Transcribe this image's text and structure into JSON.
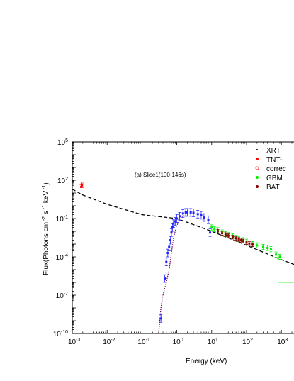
{
  "chart_data": {
    "type": "scatter",
    "annotation": "(a) Slice1(100-146s)",
    "xlabel": "Energy (keV)",
    "ylabel": "Flux(Photons cm^-2 s^-1 keV^-1)",
    "x_scale": "log",
    "y_scale": "log",
    "xlim": [
      0.001,
      3000
    ],
    "ylim": [
      1e-10,
      100000
    ],
    "x_ticks": [
      {
        "value": 0.001,
        "base": "10",
        "exp": "-3"
      },
      {
        "value": 0.01,
        "base": "10",
        "exp": "-2"
      },
      {
        "value": 0.1,
        "base": "10",
        "exp": "-1"
      },
      {
        "value": 1,
        "base": "10",
        "exp": "0"
      },
      {
        "value": 10,
        "base": "10",
        "exp": "1"
      },
      {
        "value": 100,
        "base": "10",
        "exp": "2"
      },
      {
        "value": 1000,
        "base": "10",
        "exp": "3"
      }
    ],
    "y_ticks": [
      {
        "value": 1e-10,
        "base": "10",
        "exp": "-10"
      },
      {
        "value": 1e-07,
        "base": "10",
        "exp": "-7"
      },
      {
        "value": 0.0001,
        "base": "10",
        "exp": "-4"
      },
      {
        "value": 0.1,
        "base": "10",
        "exp": "-1"
      },
      {
        "value": 100,
        "base": "10",
        "exp": "2"
      },
      {
        "value": 100000,
        "base": "10",
        "exp": "5"
      }
    ],
    "grid": false,
    "legend_position": "top-right",
    "legend": [
      {
        "label": "XRT",
        "color": "#000000",
        "marker": "dot"
      },
      {
        "label": "TNT-",
        "color": "#ff0000",
        "marker": "filled-circle"
      },
      {
        "label": "correc",
        "color": "#ff0000",
        "marker": "open-circle"
      },
      {
        "label": "GBM",
        "color": "#00ee00",
        "marker": "filled-circle"
      },
      {
        "label": "BAT",
        "color": "#8b0000",
        "marker": "filled-circle"
      }
    ],
    "colors": {
      "xrt": "#2222ff",
      "absorbed_model": "#660066",
      "tnt": "#ff0000",
      "gbm": "#00ee00",
      "bat": "#8b0000",
      "model": "#000000"
    },
    "model_line": {
      "style": "dashed",
      "points": [
        [
          0.001,
          20
        ],
        [
          0.002,
          7
        ],
        [
          0.01,
          1.3
        ],
        [
          0.1,
          0.2
        ],
        [
          1,
          0.1
        ],
        [
          2,
          0.05
        ],
        [
          10,
          0.01
        ],
        [
          100,
          0.0008
        ],
        [
          1000,
          6e-05
        ],
        [
          3000,
          2e-05
        ]
      ]
    },
    "absorbed_model": {
      "style": "dotted",
      "points": [
        [
          0.3,
          1e-10
        ],
        [
          0.35,
          1e-08
        ],
        [
          0.4,
          1e-07
        ],
        [
          0.5,
          1e-06
        ],
        [
          0.6,
          1e-05
        ],
        [
          0.7,
          0.0002
        ],
        [
          0.8,
          0.003
        ],
        [
          1,
          0.03
        ],
        [
          1.5,
          0.15
        ],
        [
          2,
          0.2
        ]
      ]
    },
    "series": [
      {
        "name": "TNT-",
        "x": [
          0.0018,
          0.0019
        ],
        "y": [
          30,
          40
        ],
        "yerr_factor": 1.5
      },
      {
        "name": "XRT",
        "x": [
          0.35,
          0.45,
          0.5,
          0.55,
          0.6,
          0.65,
          0.7,
          0.75,
          0.8,
          0.9,
          1.0,
          1.2,
          1.5,
          1.8,
          2.0,
          2.5,
          3.0,
          4.0,
          5.0,
          6.0,
          8.0,
          9.0
        ],
        "y": [
          1.5e-09,
          2e-06,
          4e-05,
          0.0002,
          0.0006,
          0.002,
          0.008,
          0.02,
          0.04,
          0.06,
          0.1,
          0.15,
          0.25,
          0.3,
          0.3,
          0.3,
          0.28,
          0.22,
          0.18,
          0.12,
          0.08,
          0.008
        ],
        "yerr_factor": 2
      },
      {
        "name": "GBM",
        "x": [
          10,
          12,
          15,
          20,
          25,
          30,
          40,
          50,
          60,
          80,
          100,
          150,
          200,
          300,
          400,
          500,
          700,
          900,
          3000
        ],
        "y": [
          0.02,
          0.015,
          0.012,
          0.008,
          0.006,
          0.005,
          0.004,
          0.003,
          0.0025,
          0.002,
          0.0015,
          0.001,
          0.0008,
          0.0006,
          0.0005,
          0.0004,
          0.00015,
          0.0001,
          1e-06
        ],
        "yerr_factor": 1.6
      },
      {
        "name": "BAT",
        "x": [
          15,
          20,
          25,
          30,
          40,
          50,
          60,
          70,
          80,
          100,
          120,
          150
        ],
        "y": [
          0.01,
          0.007,
          0.0055,
          0.0045,
          0.0035,
          0.0028,
          0.0023,
          0.002,
          0.0017,
          0.0013,
          0.0011,
          0.0009
        ],
        "yerr_factor": 1.4
      }
    ]
  }
}
